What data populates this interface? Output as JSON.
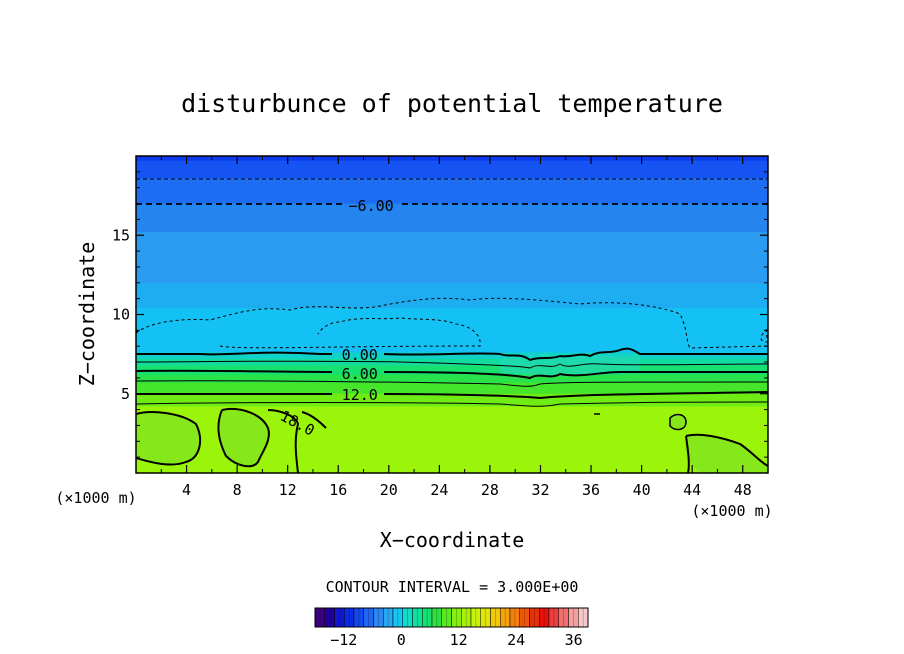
{
  "chart_data": {
    "type": "heatmap",
    "title": "disturbunce of potential temperature",
    "xlabel": "X−coordinate",
    "ylabel": "Z−coordinate",
    "x_unit": "(×1000 m)",
    "y_unit": "(×1000 m)",
    "xlim": [
      0,
      50
    ],
    "ylim": [
      0,
      20
    ],
    "x_ticks": [
      4,
      8,
      12,
      16,
      20,
      24,
      28,
      32,
      36,
      40,
      44,
      48
    ],
    "y_ticks": [
      5,
      10,
      15
    ],
    "contour_interval_label": "CONTOUR INTERVAL = 3.000E+00",
    "contour_labels": [
      {
        "text": "−6.00",
        "x": 18.6,
        "z": 16.9
      },
      {
        "text": "0.00",
        "x": 17.7,
        "z": 7.5
      },
      {
        "text": "6.00",
        "x": 17.7,
        "z": 6.3
      },
      {
        "text": "12.0",
        "x": 17.7,
        "z": 5.0
      },
      {
        "text": "18.0",
        "x": 12.8,
        "z": 3.2
      }
    ],
    "background_layers": [
      {
        "z0": 19.7,
        "z1": 20.0,
        "color": "#0d3cf0"
      },
      {
        "z0": 18.6,
        "z1": 19.7,
        "color": "#1553f3"
      },
      {
        "z0": 17.0,
        "z1": 18.6,
        "color": "#1d6cf2"
      },
      {
        "z0": 15.2,
        "z1": 17.0,
        "color": "#2484f0"
      },
      {
        "z0": 12.0,
        "z1": 15.2,
        "color": "#2b9bf0"
      },
      {
        "z0": 10.4,
        "z1": 12.0,
        "color": "#1fadf2"
      },
      {
        "z0": 7.6,
        "z1": 10.4,
        "color": "#14c1f5"
      },
      {
        "z0": 7.2,
        "z1": 7.6,
        "color": "#10d2c8"
      },
      {
        "z0": 6.8,
        "z1": 7.2,
        "color": "#10dca0"
      },
      {
        "z0": 6.2,
        "z1": 6.8,
        "color": "#18e070"
      },
      {
        "z0": 5.7,
        "z1": 6.2,
        "color": "#27e24a"
      },
      {
        "z0": 5.0,
        "z1": 5.7,
        "color": "#45e52c"
      },
      {
        "z0": 4.2,
        "z1": 5.0,
        "color": "#6fec14"
      },
      {
        "z0": 0.0,
        "z1": 4.2,
        "color": "#9bf50a"
      }
    ],
    "colorbar": {
      "min": -18,
      "max": 39,
      "step": 3,
      "tick_labels": [
        "−12",
        "0",
        "12",
        "24",
        "36"
      ],
      "tick_values": [
        -12,
        0,
        12,
        24,
        36
      ],
      "colors": [
        "#3a0080",
        "#22009c",
        "#1218c8",
        "#0a2ce8",
        "#1448f0",
        "#1f66f2",
        "#2b88f2",
        "#26a8f2",
        "#14c8f2",
        "#10dcc8",
        "#10e09c",
        "#18e070",
        "#2ee040",
        "#5ae820",
        "#86ee10",
        "#a8f20a",
        "#c8f20a",
        "#e0e40a",
        "#f0c80a",
        "#f4a40a",
        "#f4800a",
        "#f0560a",
        "#e8300a",
        "#e8100a",
        "#e84040",
        "#f07070",
        "#f4a0a0",
        "#f8c8c8"
      ]
    }
  }
}
